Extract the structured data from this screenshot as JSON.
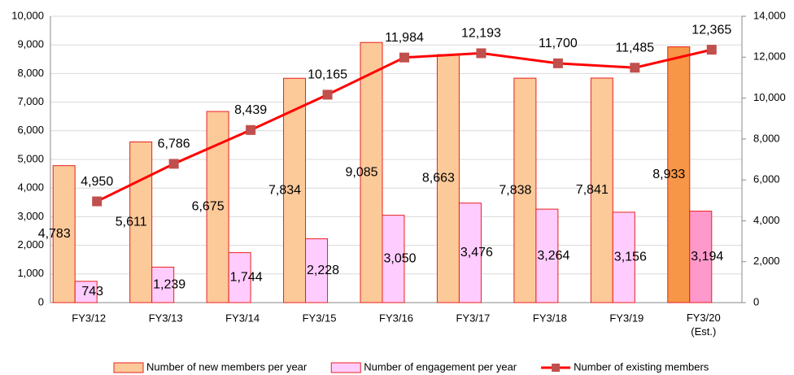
{
  "chart_data": {
    "type": "bar_line",
    "categories": [
      "FY3/12",
      "FY3/13",
      "FY3/14",
      "FY3/15",
      "FY3/16",
      "FY3/17",
      "FY3/18",
      "FY3/19",
      "FY3/20\n(Est.)"
    ],
    "series": [
      {
        "name": "Number of new members per year",
        "type": "bar",
        "color": "#fcc999",
        "stroke": "#e8201e",
        "colors": [
          "#fcc999",
          "#fcc999",
          "#fcc999",
          "#fcc999",
          "#fcc999",
          "#fcc999",
          "#fcc999",
          "#fcc999",
          "#f79646"
        ],
        "values": [
          4783,
          5611,
          6675,
          7834,
          9085,
          8663,
          7838,
          7841,
          8933
        ],
        "value_labels": [
          "4,783",
          "5,611",
          "6,675",
          "7,834",
          "9,085",
          "8,663",
          "7,838",
          "7,841",
          "8,933"
        ]
      },
      {
        "name": "Number of engagement per year",
        "type": "bar",
        "color": "#ffccff",
        "stroke": "#e8201e",
        "colors": [
          "#ffccff",
          "#ffccff",
          "#ffccff",
          "#ffccff",
          "#ffccff",
          "#ffccff",
          "#ffccff",
          "#ffccff",
          "#ff99cc"
        ],
        "values": [
          743,
          1239,
          1744,
          2228,
          3050,
          3476,
          3264,
          3156,
          3194
        ],
        "value_labels": [
          "743",
          "1,239",
          "1,744",
          "2,228",
          "3,050",
          "3,476",
          "3,264",
          "3,156",
          "3,194"
        ]
      },
      {
        "name": "Number of existing members",
        "type": "line",
        "axis": "y2",
        "color": "#ff0000",
        "marker_color": "#c0504d",
        "values": [
          4950,
          6786,
          8439,
          10165,
          11984,
          12193,
          11700,
          11485,
          12365
        ],
        "value_labels": [
          "4,950",
          "6,786",
          "8,439",
          "10,165",
          "11,984",
          "12,193",
          "11,700",
          "11,485",
          "12,365"
        ]
      }
    ],
    "ylim": [
      0,
      10000
    ],
    "yticks": [
      0,
      {
        "value": 1000,
        "label": "1,000"
      },
      {
        "value": 2000,
        "label": "2,000"
      },
      {
        "value": 3000,
        "label": "3,000"
      },
      {
        "value": 4000,
        "label": "4,000"
      },
      {
        "value": 5000,
        "label": "5,000"
      },
      {
        "value": 6000,
        "label": "6,000"
      },
      {
        "value": 7000,
        "label": "7,000"
      },
      {
        "value": 8000,
        "label": "8,000"
      },
      {
        "value": 9000,
        "label": "9,000"
      },
      {
        "value": 10000,
        "label": "10,000"
      }
    ],
    "y2lim": [
      0,
      14000
    ],
    "y2ticks": [
      0,
      {
        "value": 2000,
        "label": "2,000"
      },
      {
        "value": 4000,
        "label": "4,000"
      },
      {
        "value": 6000,
        "label": "6,000"
      },
      {
        "value": 8000,
        "label": "8,000"
      },
      {
        "value": 10000,
        "label": "10,000"
      },
      {
        "value": 12000,
        "label": "12,000"
      },
      {
        "value": 14000,
        "label": "14,000"
      }
    ],
    "legend": "bottom"
  }
}
